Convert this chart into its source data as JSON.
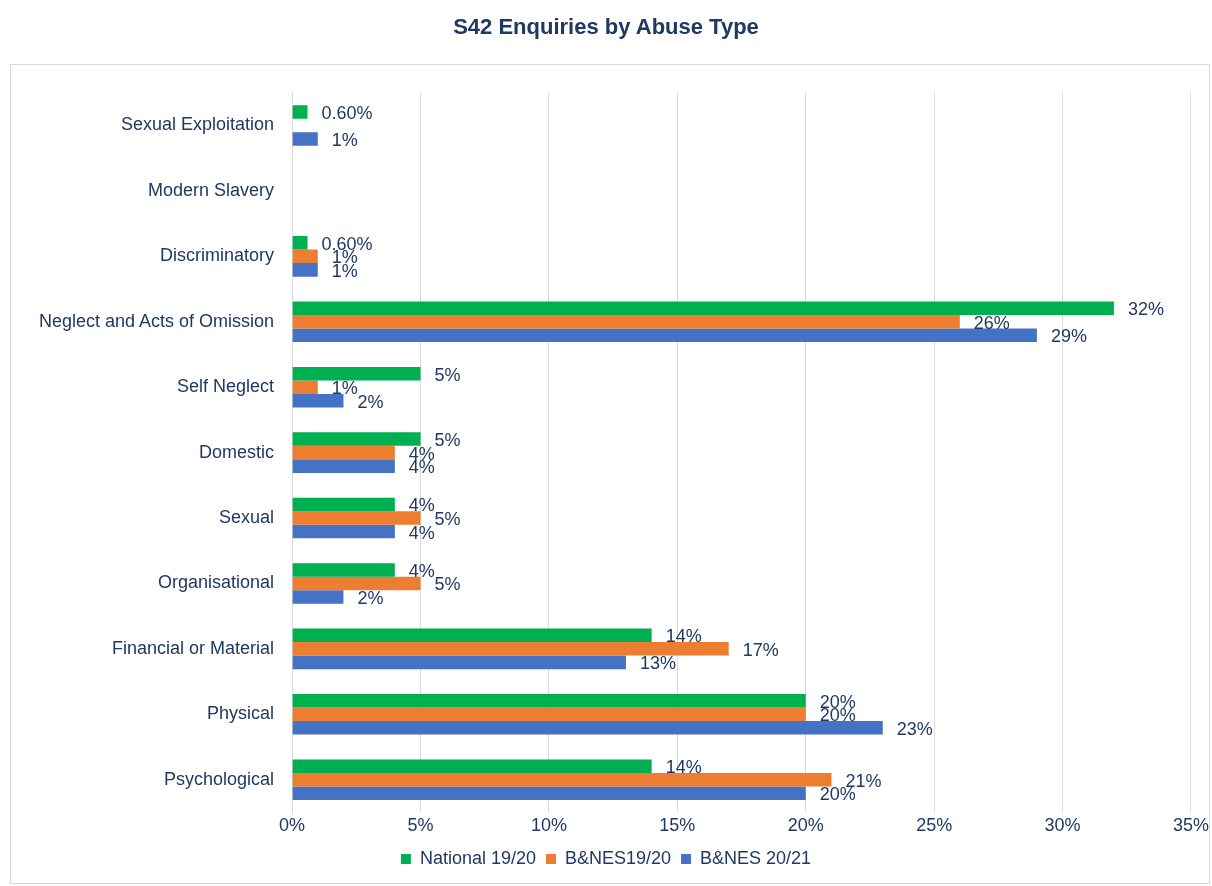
{
  "chart_data": {
    "type": "bar",
    "title": "S42 Enquiries by Abuse Type",
    "orientation": "horizontal",
    "categories": [
      "Sexual Exploitation",
      "Modern Slavery",
      "Discriminatory",
      "Neglect and Acts of Omission",
      "Self Neglect",
      "Domestic",
      "Sexual",
      "Organisational",
      "Financial or Material",
      "Physical",
      "Psychological"
    ],
    "series": [
      {
        "name": "National 19/20",
        "color": "#00b050",
        "values": [
          0.6,
          null,
          0.6,
          32,
          5,
          5,
          4,
          4,
          14,
          20,
          14
        ],
        "value_labels": [
          "0.60%",
          null,
          "0.60%",
          "32%",
          "5%",
          "5%",
          "4%",
          "4%",
          "14%",
          "20%",
          "14%"
        ]
      },
      {
        "name": "B&NES19/20",
        "color": "#ed7d31",
        "values": [
          null,
          null,
          1,
          26,
          1,
          4,
          5,
          5,
          17,
          20,
          21
        ],
        "value_labels": [
          null,
          null,
          "1%",
          "26%",
          "1%",
          "4%",
          "5%",
          "5%",
          "17%",
          "20%",
          "21%"
        ]
      },
      {
        "name": "B&NES 20/21",
        "color": "#4472c4",
        "values": [
          1,
          null,
          1,
          29,
          2,
          4,
          4,
          2,
          13,
          23,
          20
        ],
        "value_labels": [
          "1%",
          null,
          "1%",
          "29%",
          "2%",
          "4%",
          "4%",
          "2%",
          "13%",
          "23%",
          "20%"
        ]
      }
    ],
    "xlim": [
      0,
      35
    ],
    "xticks": [
      {
        "value": 0,
        "label": "0%"
      },
      {
        "value": 5,
        "label": "5%"
      },
      {
        "value": 10,
        "label": "10%"
      },
      {
        "value": 15,
        "label": "15%"
      },
      {
        "value": 20,
        "label": "20%"
      },
      {
        "value": 25,
        "label": "25%"
      },
      {
        "value": 30,
        "label": "30%"
      },
      {
        "value": 35,
        "label": "35%"
      }
    ],
    "grid": "x",
    "legend": "bottom"
  }
}
